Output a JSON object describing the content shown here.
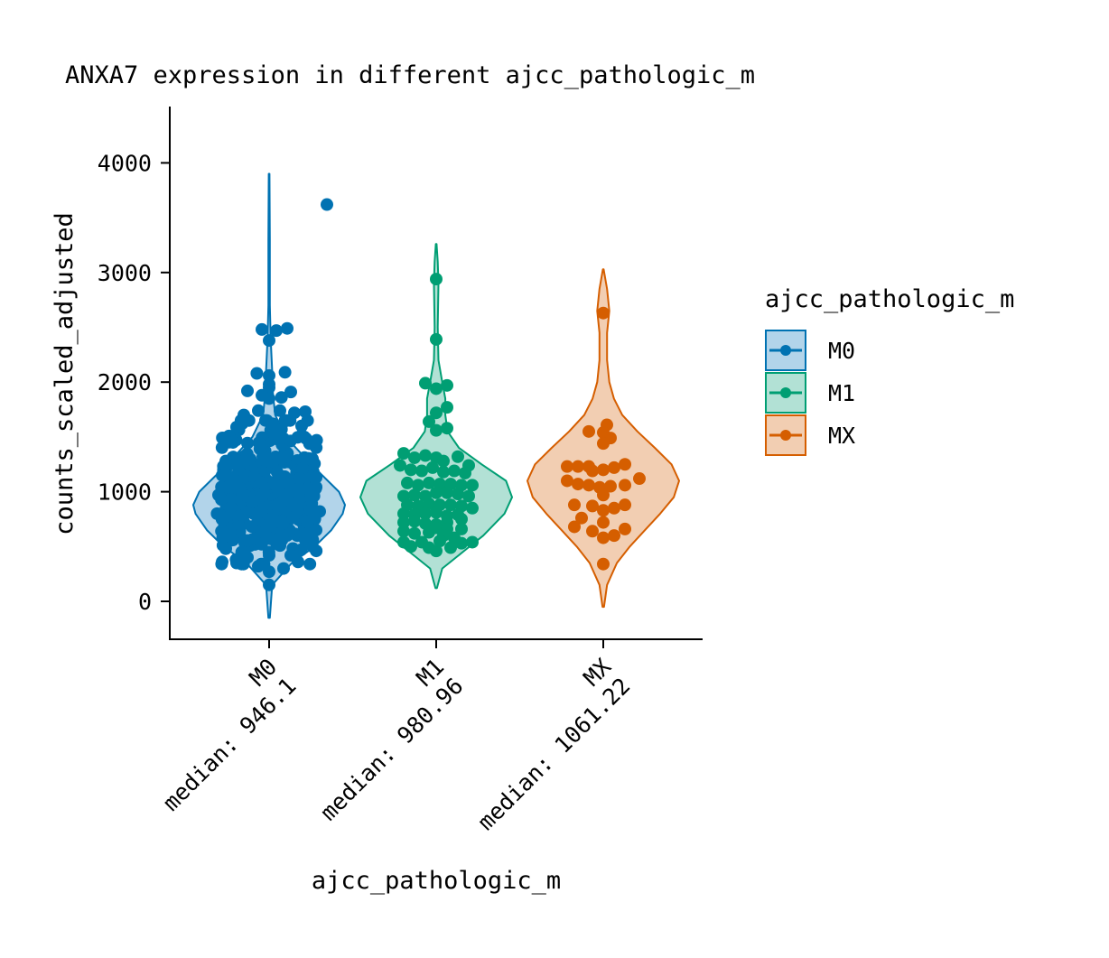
{
  "chart_data": {
    "type": "violin",
    "title": "ANXA7 expression in different ajcc_pathologic_m",
    "xlabel": "ajcc_pathologic_m",
    "ylabel": "counts_scaled_adjusted",
    "ylim": [
      -340,
      4500
    ],
    "y_ticks": [
      0,
      1000,
      2000,
      3000,
      4000
    ],
    "y_tick_labels": [
      "0",
      "1000",
      "2000",
      "3000",
      "4000"
    ],
    "legend": {
      "title": "ajcc_pathologic_m",
      "position": "right",
      "entries": [
        "M0",
        "M1",
        "MX"
      ]
    },
    "categories": [
      {
        "name": "M0",
        "median_label": "median: 946.1",
        "median": 946.1,
        "color": "#0072B2",
        "fill": "#B2D4EA",
        "violin_range": [
          -150,
          3900
        ],
        "violin_profile": [
          [
            -150,
            0.01
          ],
          [
            150,
            0.04
          ],
          [
            350,
            0.3
          ],
          [
            500,
            0.6
          ],
          [
            650,
            0.82
          ],
          [
            800,
            0.97
          ],
          [
            880,
            1.0
          ],
          [
            1000,
            0.92
          ],
          [
            1150,
            0.7
          ],
          [
            1350,
            0.42
          ],
          [
            1500,
            0.22
          ],
          [
            1700,
            0.08
          ],
          [
            1900,
            0.05
          ],
          [
            2100,
            0.04
          ],
          [
            2400,
            0.02
          ],
          [
            2700,
            0.01
          ],
          [
            3300,
            0.01
          ],
          [
            3900,
            0.005
          ]
        ],
        "points": [
          [
            0.8,
            3620
          ],
          [
            -0.1,
            2480
          ],
          [
            0.1,
            2470
          ],
          [
            0.0,
            2380
          ],
          [
            0.25,
            2490
          ],
          [
            -0.17,
            2080
          ],
          [
            0.22,
            2090
          ],
          [
            0.0,
            2060
          ],
          [
            0.0,
            1980
          ],
          [
            0.0,
            1950
          ],
          [
            -0.3,
            1920
          ],
          [
            0.3,
            1910
          ],
          [
            -0.1,
            1880
          ],
          [
            0.17,
            1860
          ],
          [
            0.0,
            1850
          ],
          [
            -0.15,
            1740
          ],
          [
            0.15,
            1740
          ],
          [
            -0.35,
            1700
          ],
          [
            0.35,
            1720
          ],
          [
            0.5,
            1730
          ],
          [
            -0.45,
            1590
          ],
          [
            0.45,
            1600
          ],
          [
            0.55,
            1460
          ],
          [
            -0.5,
            1450
          ],
          [
            -0.05,
            1650
          ],
          [
            0.05,
            1620
          ],
          [
            0.6,
            1300
          ],
          [
            -0.6,
            1280
          ],
          [
            0.65,
            1130
          ],
          [
            -0.65,
            1150
          ],
          [
            0.62,
            960
          ],
          [
            -0.7,
            970
          ],
          [
            0.7,
            820
          ],
          [
            -0.72,
            800
          ],
          [
            0.65,
            650
          ],
          [
            -0.66,
            640
          ],
          [
            0.6,
            500
          ],
          [
            -0.6,
            480
          ],
          [
            -0.65,
            360
          ],
          [
            -0.45,
            350
          ],
          [
            0.4,
            360
          ],
          [
            0.2,
            300
          ],
          [
            -0.15,
            320
          ],
          [
            0.0,
            270
          ],
          [
            0.0,
            150
          ],
          [
            -0.3,
            400
          ],
          [
            0.3,
            420
          ],
          [
            -0.5,
            560
          ],
          [
            0.5,
            560
          ],
          [
            0.0,
            420
          ]
        ],
        "cloud_count": 420
      },
      {
        "name": "M1",
        "median_label": "median: 980.96",
        "median": 980.96,
        "color": "#009E73",
        "fill": "#B2E1D5",
        "violin_range": [
          120,
          3260
        ],
        "violin_profile": [
          [
            120,
            0.01
          ],
          [
            300,
            0.08
          ],
          [
            450,
            0.35
          ],
          [
            600,
            0.62
          ],
          [
            800,
            0.9
          ],
          [
            950,
            1.0
          ],
          [
            1100,
            0.92
          ],
          [
            1250,
            0.6
          ],
          [
            1400,
            0.3
          ],
          [
            1550,
            0.15
          ],
          [
            1700,
            0.12
          ],
          [
            1850,
            0.12
          ],
          [
            2000,
            0.08
          ],
          [
            2200,
            0.03
          ],
          [
            2500,
            0.02
          ],
          [
            2900,
            0.03
          ],
          [
            3100,
            0.02
          ],
          [
            3260,
            0.005
          ]
        ],
        "points": [
          [
            0.0,
            2940
          ],
          [
            0.0,
            2390
          ],
          [
            -0.15,
            1990
          ],
          [
            0.0,
            1940
          ],
          [
            0.15,
            1970
          ],
          [
            0.0,
            1720
          ],
          [
            0.15,
            1770
          ],
          [
            -0.1,
            1640
          ],
          [
            0.0,
            1560
          ],
          [
            0.15,
            1580
          ],
          [
            -0.45,
            1350
          ],
          [
            -0.3,
            1310
          ],
          [
            -0.15,
            1330
          ],
          [
            0.0,
            1310
          ],
          [
            0.1,
            1280
          ],
          [
            0.3,
            1320
          ],
          [
            0.45,
            1240
          ],
          [
            -0.5,
            1240
          ],
          [
            -0.35,
            1200
          ],
          [
            -0.2,
            1190
          ],
          [
            -0.05,
            1220
          ],
          [
            0.1,
            1180
          ],
          [
            0.25,
            1190
          ],
          [
            0.4,
            1170
          ],
          [
            -0.4,
            1080
          ],
          [
            -0.25,
            1060
          ],
          [
            -0.1,
            1080
          ],
          [
            0.05,
            1070
          ],
          [
            0.2,
            1070
          ],
          [
            0.35,
            1060
          ],
          [
            0.5,
            1060
          ],
          [
            -0.45,
            960
          ],
          [
            -0.3,
            970
          ],
          [
            -0.15,
            960
          ],
          [
            0.0,
            990
          ],
          [
            0.15,
            990
          ],
          [
            0.3,
            980
          ],
          [
            0.45,
            960
          ],
          [
            -0.4,
            880
          ],
          [
            -0.25,
            870
          ],
          [
            -0.1,
            890
          ],
          [
            0.05,
            880
          ],
          [
            0.2,
            880
          ],
          [
            0.35,
            870
          ],
          [
            0.5,
            850
          ],
          [
            -0.45,
            800
          ],
          [
            -0.3,
            790
          ],
          [
            -0.15,
            800
          ],
          [
            0.0,
            810
          ],
          [
            0.15,
            780
          ],
          [
            0.3,
            790
          ],
          [
            -0.45,
            720
          ],
          [
            -0.3,
            730
          ],
          [
            -0.15,
            710
          ],
          [
            0.0,
            700
          ],
          [
            0.15,
            720
          ],
          [
            0.35,
            750
          ],
          [
            -0.45,
            640
          ],
          [
            -0.3,
            620
          ],
          [
            -0.1,
            630
          ],
          [
            0.0,
            670
          ],
          [
            0.15,
            660
          ],
          [
            0.35,
            660
          ],
          [
            -0.45,
            540
          ],
          [
            -0.35,
            500
          ],
          [
            -0.2,
            540
          ],
          [
            -0.1,
            490
          ],
          [
            0.0,
            460
          ],
          [
            0.1,
            600
          ],
          [
            0.25,
            580
          ],
          [
            0.35,
            530
          ],
          [
            0.5,
            540
          ],
          [
            0.2,
            490
          ],
          [
            0.05,
            550
          ]
        ]
      },
      {
        "name": "MX",
        "median_label": "median: 1061.22",
        "median": 1061.22,
        "color": "#D55E00",
        "fill": "#F2CEB2",
        "violin_range": [
          -50,
          3030
        ],
        "violin_profile": [
          [
            -50,
            0.01
          ],
          [
            150,
            0.05
          ],
          [
            350,
            0.18
          ],
          [
            500,
            0.35
          ],
          [
            650,
            0.55
          ],
          [
            800,
            0.75
          ],
          [
            950,
            0.93
          ],
          [
            1100,
            1.0
          ],
          [
            1250,
            0.9
          ],
          [
            1400,
            0.68
          ],
          [
            1550,
            0.45
          ],
          [
            1700,
            0.25
          ],
          [
            1850,
            0.14
          ],
          [
            2000,
            0.08
          ],
          [
            2200,
            0.05
          ],
          [
            2450,
            0.05
          ],
          [
            2650,
            0.08
          ],
          [
            2850,
            0.05
          ],
          [
            3030,
            0.005
          ]
        ],
        "points": [
          [
            0.0,
            2630
          ],
          [
            0.05,
            1610
          ],
          [
            -0.2,
            1550
          ],
          [
            0.0,
            1540
          ],
          [
            0.1,
            1490
          ],
          [
            0.0,
            1440
          ],
          [
            -0.5,
            1230
          ],
          [
            -0.2,
            1230
          ],
          [
            -0.35,
            1230
          ],
          [
            0.0,
            1200
          ],
          [
            0.15,
            1220
          ],
          [
            0.3,
            1250
          ],
          [
            -0.15,
            1190
          ],
          [
            0.5,
            1120
          ],
          [
            -0.5,
            1100
          ],
          [
            -0.35,
            1070
          ],
          [
            -0.2,
            1060
          ],
          [
            -0.05,
            1040
          ],
          [
            0.1,
            1050
          ],
          [
            0.3,
            1060
          ],
          [
            -0.4,
            880
          ],
          [
            -0.15,
            870
          ],
          [
            0.0,
            830
          ],
          [
            0.15,
            850
          ],
          [
            0.3,
            880
          ],
          [
            0.0,
            970
          ],
          [
            -0.3,
            760
          ],
          [
            0.0,
            720
          ],
          [
            -0.4,
            680
          ],
          [
            -0.15,
            640
          ],
          [
            0.0,
            580
          ],
          [
            0.15,
            600
          ],
          [
            0.3,
            660
          ],
          [
            0.0,
            340
          ]
        ]
      }
    ]
  }
}
